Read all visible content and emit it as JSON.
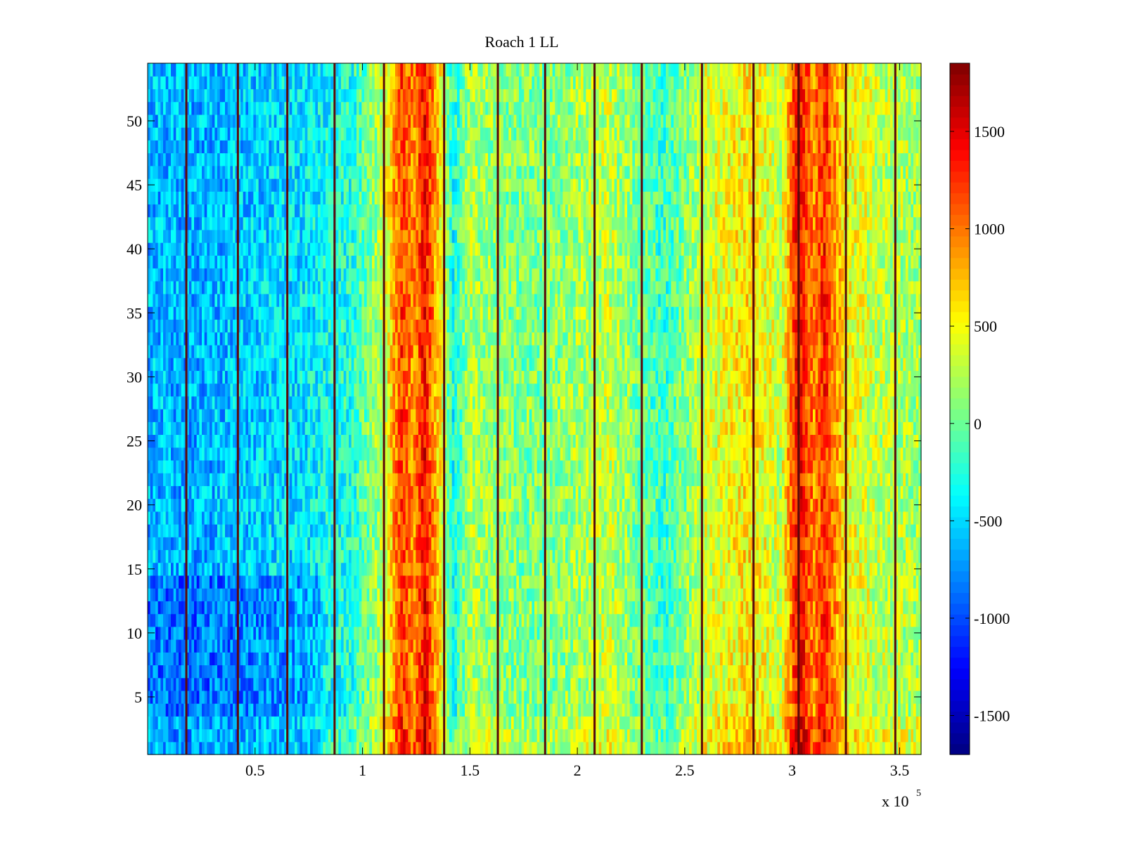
{
  "chart_data": {
    "type": "heatmap",
    "title": "Roach 1 LL",
    "xlabel": "",
    "ylabel": "",
    "xlim": [
      0,
      360000
    ],
    "ylim": [
      0.5,
      54.5
    ],
    "x_tick_values": [
      50000,
      100000,
      150000,
      200000,
      250000,
      300000,
      350000
    ],
    "x_tick_labels": [
      "0.5",
      "1",
      "1.5",
      "2",
      "2.5",
      "3",
      "3.5"
    ],
    "x_exponent_label": "x 10",
    "x_exponent_power": "5",
    "y_tick_values": [
      5,
      10,
      15,
      20,
      25,
      30,
      35,
      40,
      45,
      50
    ],
    "y_tick_labels": [
      "5",
      "10",
      "15",
      "20",
      "25",
      "30",
      "35",
      "40",
      "45",
      "50"
    ],
    "rows": 54,
    "colormap": "jet",
    "clim": [
      -1700,
      1850
    ],
    "colorbar_ticks": [
      -1500,
      -1000,
      -500,
      0,
      500,
      1000,
      1500
    ],
    "colorbar_tick_labels": [
      "-1500",
      "-1000",
      "-500",
      "0",
      "500",
      "1000",
      "1500"
    ],
    "stripe_positions": [
      18000,
      42000,
      65000,
      87000,
      110000,
      138000,
      163000,
      185000,
      208000,
      230000,
      258000,
      282000,
      303000,
      325000,
      348000
    ],
    "band_profile": [
      {
        "x": 0,
        "value": -600
      },
      {
        "x": 20000,
        "value": -650
      },
      {
        "x": 45000,
        "value": -550
      },
      {
        "x": 70000,
        "value": -450
      },
      {
        "x": 95000,
        "value": -250
      },
      {
        "x": 110000,
        "value": 300
      },
      {
        "x": 118000,
        "value": 1200
      },
      {
        "x": 124000,
        "value": 900
      },
      {
        "x": 129000,
        "value": 1400
      },
      {
        "x": 135000,
        "value": 700
      },
      {
        "x": 142000,
        "value": -300
      },
      {
        "x": 150000,
        "value": 250
      },
      {
        "x": 165000,
        "value": 100
      },
      {
        "x": 185000,
        "value": 50
      },
      {
        "x": 200000,
        "value": 200
      },
      {
        "x": 215000,
        "value": 300
      },
      {
        "x": 240000,
        "value": -200
      },
      {
        "x": 260000,
        "value": 350
      },
      {
        "x": 280000,
        "value": 600
      },
      {
        "x": 295000,
        "value": 300
      },
      {
        "x": 303000,
        "value": 1500
      },
      {
        "x": 310000,
        "value": 900
      },
      {
        "x": 315000,
        "value": 1300
      },
      {
        "x": 325000,
        "value": 500
      },
      {
        "x": 340000,
        "value": 300
      },
      {
        "x": 360000,
        "value": 200
      }
    ]
  }
}
